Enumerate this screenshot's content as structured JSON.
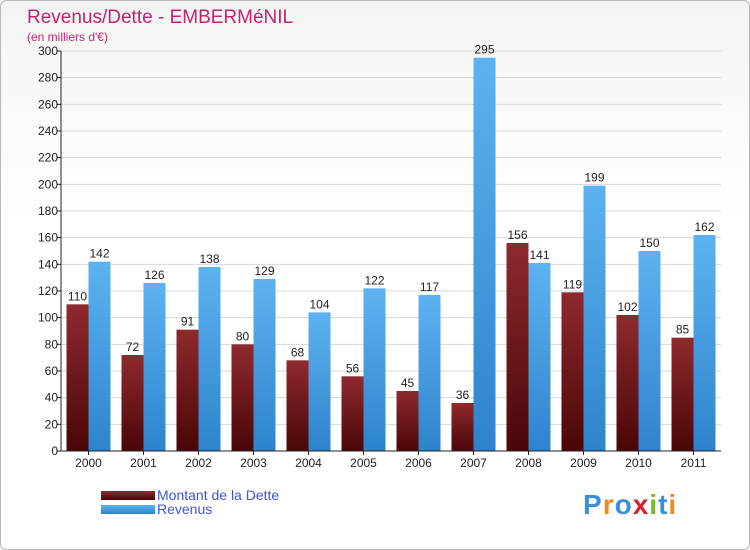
{
  "chart_data": {
    "type": "bar",
    "title": "Revenus/Dette - EMBERMéNIL",
    "subtitle": "(en milliers d'€)",
    "xlabel": "",
    "ylabel": "",
    "ylim": [
      0,
      300
    ],
    "yticks": [
      0,
      20,
      40,
      60,
      80,
      100,
      120,
      140,
      160,
      180,
      200,
      220,
      240,
      260,
      280,
      300
    ],
    "grid": true,
    "legend_position": "bottom-left",
    "categories": [
      "2000",
      "2001",
      "2002",
      "2003",
      "2004",
      "2005",
      "2006",
      "2007",
      "2008",
      "2009",
      "2010",
      "2011"
    ],
    "series": [
      {
        "name": "Montant de la Dette",
        "color": "#7a1e22",
        "values": [
          110,
          72,
          91,
          80,
          68,
          56,
          45,
          36,
          156,
          119,
          102,
          85
        ],
        "labels": [
          "110",
          "72",
          "91",
          "80",
          "68",
          "56",
          "45",
          "36",
          "156",
          "119",
          "102",
          "85"
        ]
      },
      {
        "name": "Revenus",
        "color": "#4aa3e8",
        "values": [
          142,
          126,
          138,
          129,
          104,
          122,
          117,
          295,
          141,
          199,
          150,
          162
        ],
        "labels": [
          "142",
          "126",
          "138",
          "129",
          "104",
          "122",
          "117",
          "295",
          "141",
          "199",
          "150",
          "162"
        ]
      }
    ]
  },
  "brand": {
    "logo_text": "Proxiti"
  }
}
